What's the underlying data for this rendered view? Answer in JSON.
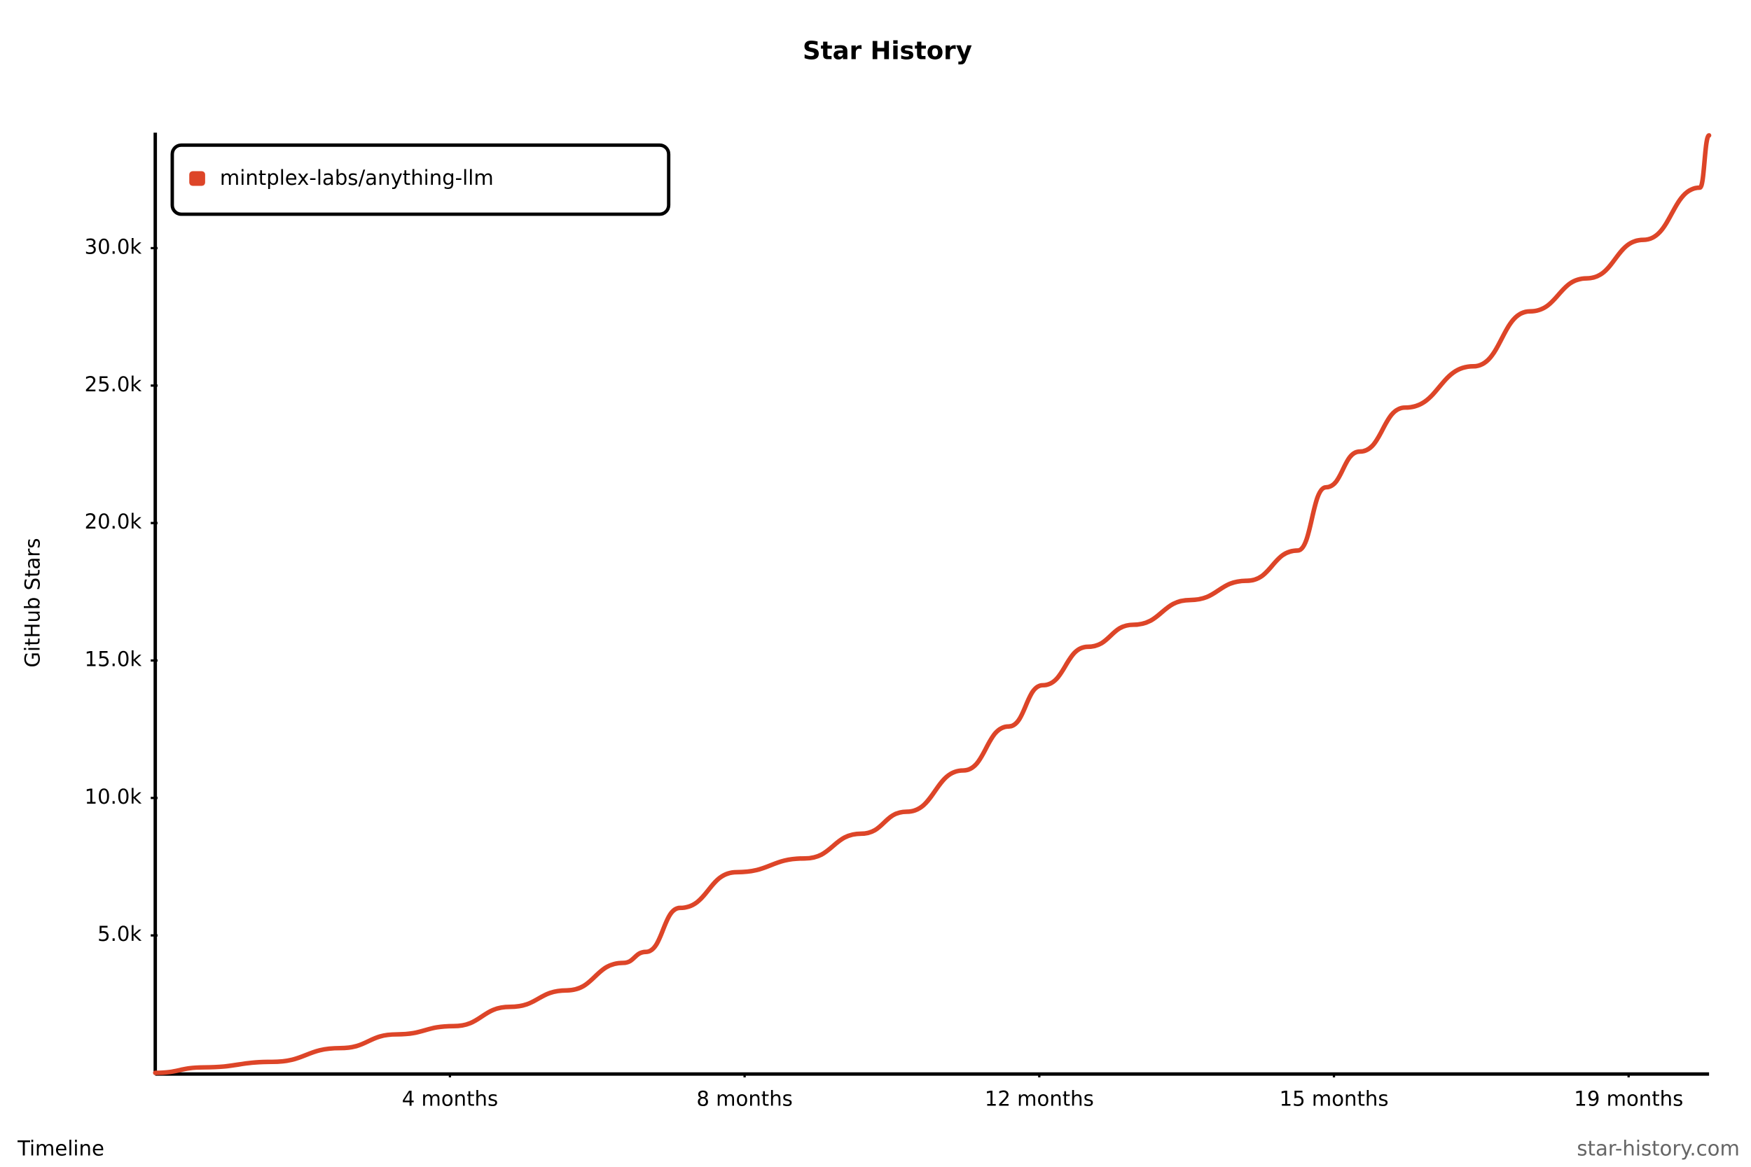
{
  "chart_data": {
    "type": "line",
    "title": "Star History",
    "x_label": "Timeline",
    "y_label": "GitHub Stars",
    "watermark": "star-history.com",
    "xlim": [
      0,
      5.273
    ],
    "xticks": [
      {
        "value": 1,
        "label": "4 months"
      },
      {
        "value": 2,
        "label": "8 months"
      },
      {
        "value": 3,
        "label": "12 months"
      },
      {
        "value": 4,
        "label": "15 months"
      },
      {
        "value": 5,
        "label": "19 months"
      }
    ],
    "ylim": [
      0,
      34200
    ],
    "yticks": [
      {
        "value": 5000,
        "label": "5.0k"
      },
      {
        "value": 10000,
        "label": "10.0k"
      },
      {
        "value": 15000,
        "label": "15.0k"
      },
      {
        "value": 20000,
        "label": "20.0k"
      },
      {
        "value": 25000,
        "label": "25.0k"
      },
      {
        "value": 30000,
        "label": "30.0k"
      }
    ],
    "legend": "top-left",
    "series": [
      {
        "name": "mintplex-labs/anything-llm",
        "color": "#dd4528",
        "x": [
          0,
          0.165,
          0.396,
          0.627,
          0.819,
          1.012,
          1.204,
          1.396,
          1.588,
          1.665,
          1.781,
          1.973,
          2.204,
          2.396,
          2.55,
          2.742,
          2.896,
          3.012,
          3.165,
          3.319,
          3.512,
          3.704,
          3.877,
          3.973,
          4.088,
          4.242,
          4.473,
          4.665,
          4.858,
          5.05,
          5.242,
          5.273
        ],
        "values": [
          0,
          200,
          400,
          900,
          1400,
          1700,
          2400,
          3000,
          4000,
          4400,
          6000,
          7300,
          7800,
          8700,
          9500,
          11000,
          12600,
          14100,
          15500,
          16300,
          17200,
          17900,
          19000,
          21300,
          22600,
          24200,
          25700,
          27700,
          28900,
          30300,
          32200,
          34100
        ]
      }
    ]
  }
}
